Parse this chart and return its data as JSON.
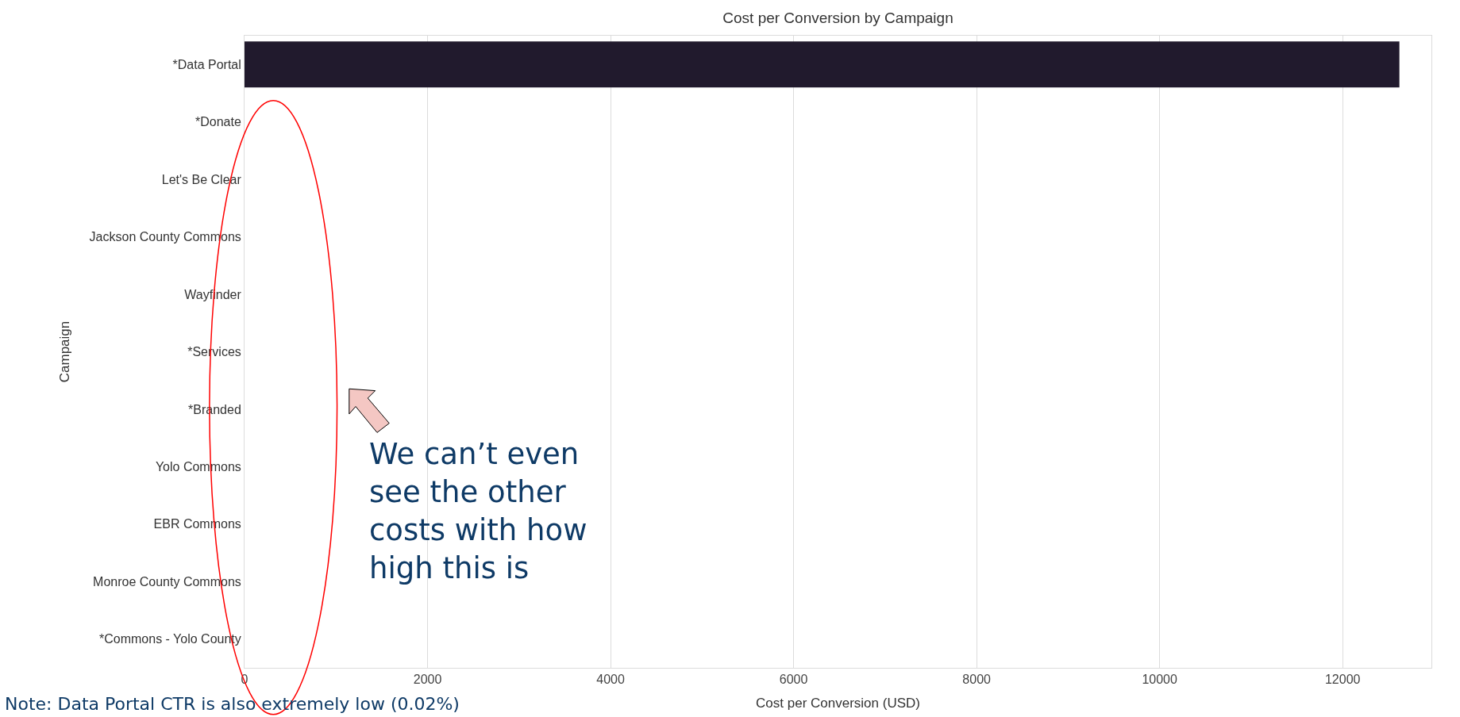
{
  "chart_data": {
    "type": "bar",
    "orientation": "horizontal",
    "title": "Cost per Conversion by Campaign",
    "xlabel": "Cost per Conversion (USD)",
    "ylabel": "Campaign",
    "categories": [
      "*Data Portal",
      "*Donate",
      "Let's Be Clear",
      "Jackson County Commons",
      "Wayfinder",
      "*Services",
      "*Branded",
      "Yolo Commons",
      "EBR Commons",
      "Monroe County Commons",
      "*Commons - Yolo County"
    ],
    "values": [
      12620,
      0,
      0,
      0,
      0,
      0,
      0,
      0,
      0,
      0,
      0
    ],
    "color": "#211a2d",
    "xlim": [
      0,
      12970
    ],
    "xticks": [
      0,
      2000,
      4000,
      6000,
      8000,
      10000,
      12000
    ],
    "grid": "x",
    "annotations": [
      "We can’t even\nsee the other\ncosts with how\nhigh this is",
      "Note: Data Portal CTR is also extremely low (0.02%)"
    ]
  }
}
